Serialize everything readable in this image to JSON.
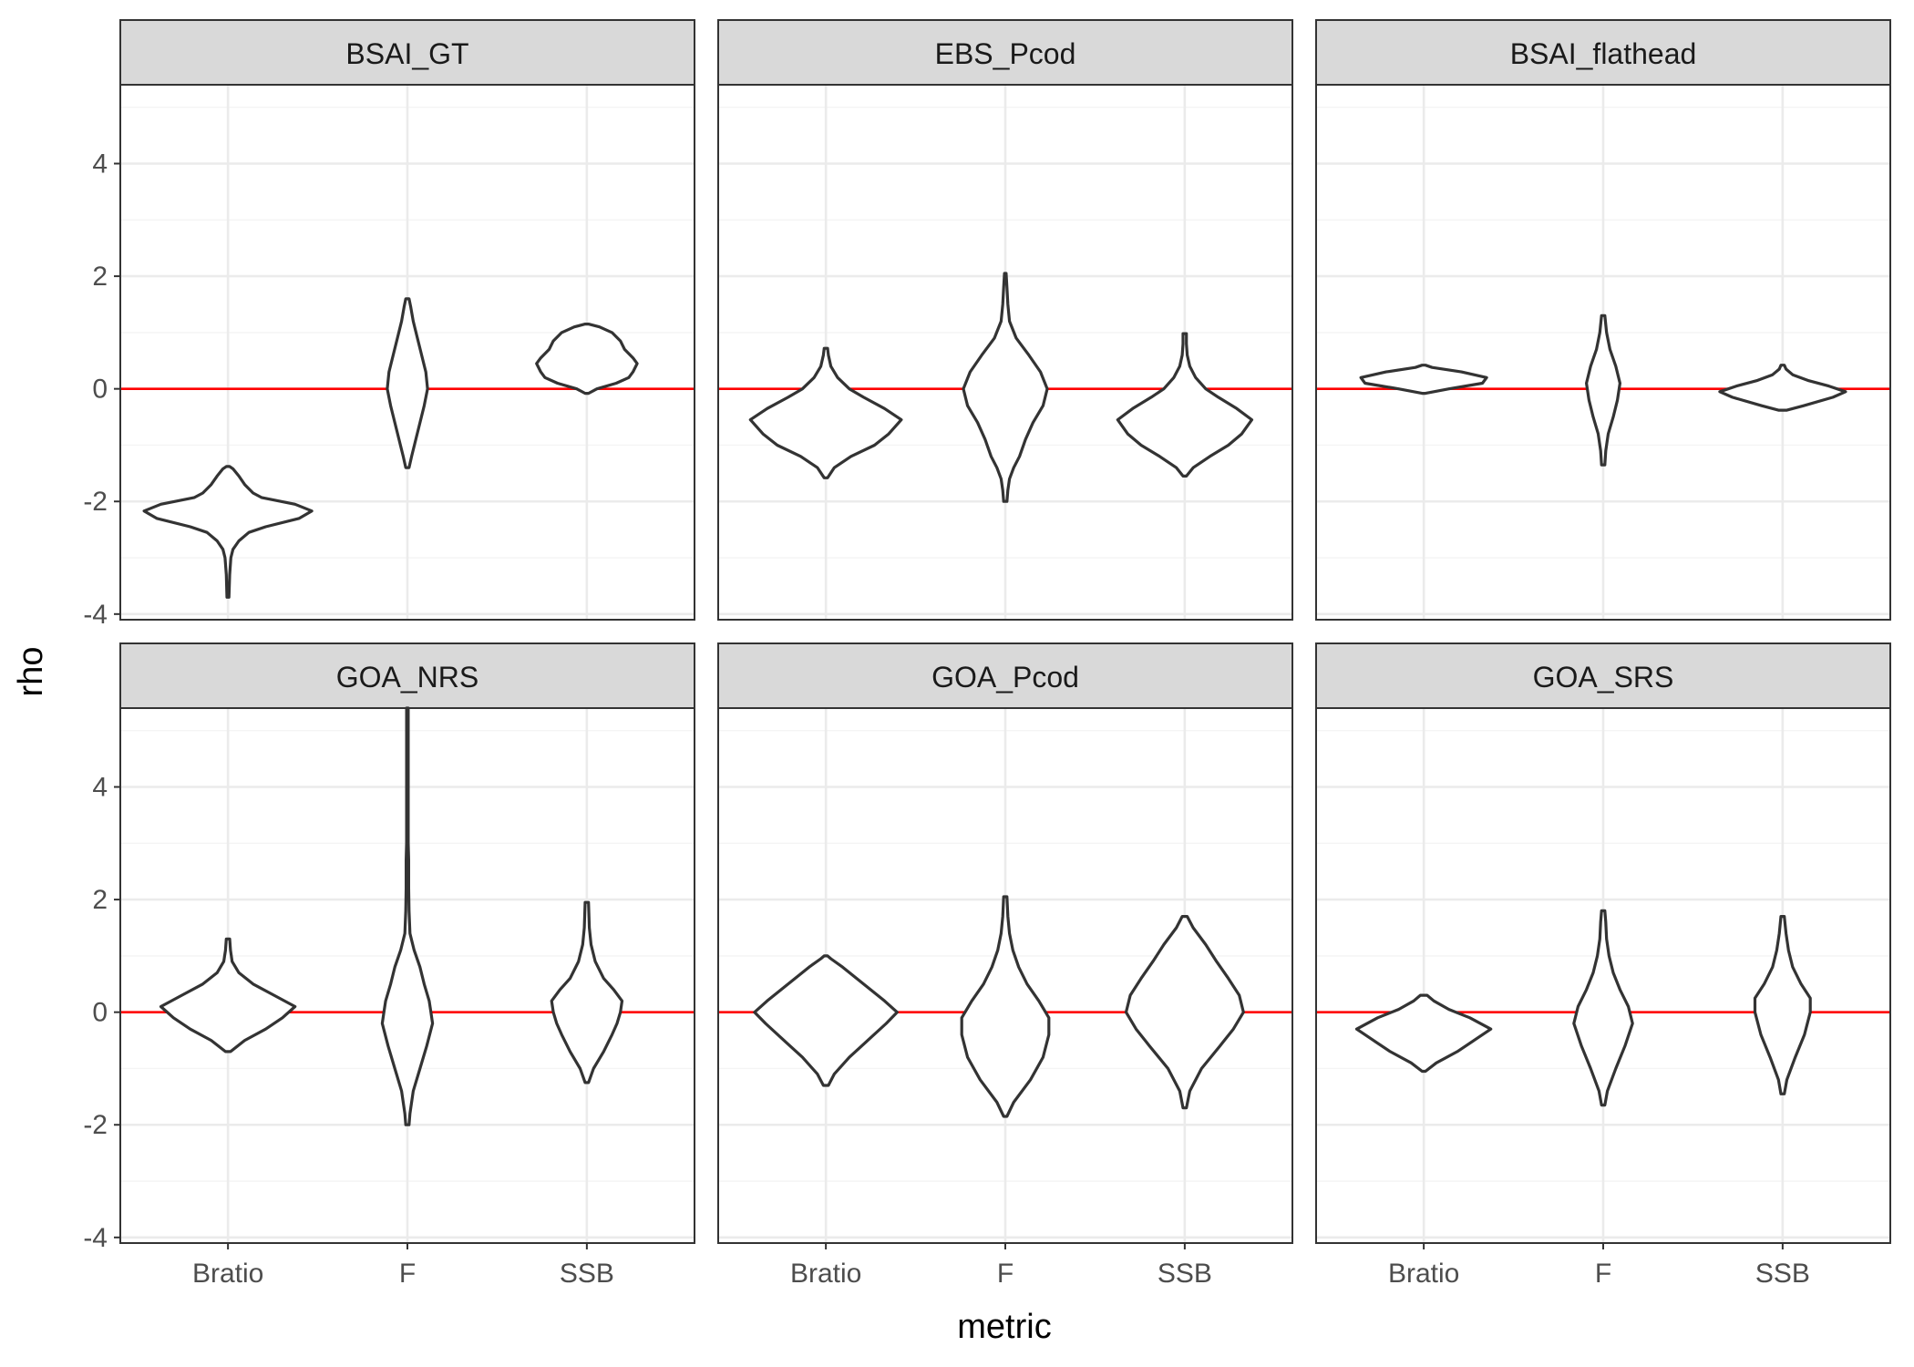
{
  "chart_data": {
    "type": "violin",
    "xlabel": "metric",
    "ylabel": "rho",
    "categories": [
      "Bratio",
      "F",
      "SSB"
    ],
    "ylim": [
      -4.1,
      5.4
    ],
    "yticks": [
      -4,
      -2,
      0,
      2,
      4
    ],
    "reference_line": {
      "y": 0,
      "color": "#ff0000"
    },
    "grid": true,
    "facets": [
      {
        "title": "BSAI_GT",
        "violins": [
          {
            "metric": "Bratio",
            "profile": [
              [
                -3.7,
                0.012
              ],
              [
                -3.3,
                0.02
              ],
              [
                -3.0,
                0.035
              ],
              [
                -2.85,
                0.06
              ],
              [
                -2.7,
                0.13
              ],
              [
                -2.55,
                0.25
              ],
              [
                -2.45,
                0.45
              ],
              [
                -2.3,
                0.85
              ],
              [
                -2.17,
                1.0
              ],
              [
                -2.05,
                0.8
              ],
              [
                -1.93,
                0.4
              ],
              [
                -1.85,
                0.3
              ],
              [
                -1.7,
                0.2
              ],
              [
                -1.55,
                0.13
              ],
              [
                -1.42,
                0.06
              ],
              [
                -1.38,
                0.02
              ]
            ]
          },
          {
            "metric": "F",
            "profile": [
              [
                -1.4,
                0.02
              ],
              [
                -1.2,
                0.05
              ],
              [
                -0.9,
                0.1
              ],
              [
                -0.6,
                0.15
              ],
              [
                -0.3,
                0.2
              ],
              [
                0.0,
                0.24
              ],
              [
                0.3,
                0.22
              ],
              [
                0.6,
                0.17
              ],
              [
                0.9,
                0.12
              ],
              [
                1.2,
                0.07
              ],
              [
                1.45,
                0.04
              ],
              [
                1.6,
                0.02
              ]
            ]
          },
          {
            "metric": "SSB",
            "profile": [
              [
                -0.08,
                0.02
              ],
              [
                0.0,
                0.12
              ],
              [
                0.1,
                0.35
              ],
              [
                0.2,
                0.5
              ],
              [
                0.3,
                0.55
              ],
              [
                0.45,
                0.6
              ],
              [
                0.55,
                0.55
              ],
              [
                0.7,
                0.45
              ],
              [
                0.85,
                0.4
              ],
              [
                1.0,
                0.3
              ],
              [
                1.1,
                0.15
              ],
              [
                1.15,
                0.02
              ]
            ]
          }
        ]
      },
      {
        "title": "EBS_Pcod",
        "violins": [
          {
            "metric": "Bratio",
            "profile": [
              [
                -1.58,
                0.02
              ],
              [
                -1.4,
                0.1
              ],
              [
                -1.2,
                0.3
              ],
              [
                -1.0,
                0.58
              ],
              [
                -0.8,
                0.75
              ],
              [
                -0.55,
                0.9
              ],
              [
                -0.35,
                0.7
              ],
              [
                -0.15,
                0.45
              ],
              [
                0.0,
                0.28
              ],
              [
                0.2,
                0.14
              ],
              [
                0.4,
                0.06
              ],
              [
                0.6,
                0.03
              ],
              [
                0.72,
                0.02
              ]
            ]
          },
          {
            "metric": "F",
            "profile": [
              [
                -2.0,
                0.02
              ],
              [
                -1.8,
                0.03
              ],
              [
                -1.6,
                0.05
              ],
              [
                -1.4,
                0.1
              ],
              [
                -1.2,
                0.17
              ],
              [
                -0.9,
                0.24
              ],
              [
                -0.6,
                0.33
              ],
              [
                -0.3,
                0.45
              ],
              [
                0.0,
                0.5
              ],
              [
                0.3,
                0.42
              ],
              [
                0.6,
                0.28
              ],
              [
                0.9,
                0.13
              ],
              [
                1.2,
                0.05
              ],
              [
                1.5,
                0.03
              ],
              [
                1.8,
                0.02
              ],
              [
                2.05,
                0.01
              ]
            ]
          },
          {
            "metric": "SSB",
            "profile": [
              [
                -1.55,
                0.02
              ],
              [
                -1.4,
                0.1
              ],
              [
                -1.2,
                0.3
              ],
              [
                -1.0,
                0.52
              ],
              [
                -0.8,
                0.68
              ],
              [
                -0.55,
                0.8
              ],
              [
                -0.35,
                0.62
              ],
              [
                -0.15,
                0.4
              ],
              [
                0.0,
                0.25
              ],
              [
                0.2,
                0.13
              ],
              [
                0.4,
                0.06
              ],
              [
                0.6,
                0.03
              ],
              [
                0.8,
                0.02
              ],
              [
                0.98,
                0.02
              ]
            ]
          }
        ]
      },
      {
        "title": "BSAI_flathead",
        "violins": [
          {
            "metric": "Bratio",
            "profile": [
              [
                -0.08,
                0.02
              ],
              [
                0.0,
                0.3
              ],
              [
                0.1,
                0.7
              ],
              [
                0.2,
                0.75
              ],
              [
                0.3,
                0.45
              ],
              [
                0.38,
                0.1
              ],
              [
                0.42,
                0.02
              ]
            ]
          },
          {
            "metric": "F",
            "profile": [
              [
                -1.35,
                0.02
              ],
              [
                -1.1,
                0.03
              ],
              [
                -0.8,
                0.06
              ],
              [
                -0.5,
                0.12
              ],
              [
                -0.2,
                0.17
              ],
              [
                0.1,
                0.2
              ],
              [
                0.4,
                0.15
              ],
              [
                0.7,
                0.08
              ],
              [
                1.0,
                0.04
              ],
              [
                1.3,
                0.02
              ]
            ]
          },
          {
            "metric": "SSB",
            "profile": [
              [
                -0.38,
                0.05
              ],
              [
                -0.3,
                0.25
              ],
              [
                -0.15,
                0.6
              ],
              [
                -0.05,
                0.75
              ],
              [
                0.05,
                0.55
              ],
              [
                0.15,
                0.3
              ],
              [
                0.25,
                0.12
              ],
              [
                0.35,
                0.04
              ],
              [
                0.42,
                0.02
              ]
            ]
          }
        ]
      },
      {
        "title": "GOA_NRS",
        "violins": [
          {
            "metric": "Bratio",
            "profile": [
              [
                -0.7,
                0.03
              ],
              [
                -0.5,
                0.2
              ],
              [
                -0.3,
                0.45
              ],
              [
                -0.1,
                0.65
              ],
              [
                0.1,
                0.8
              ],
              [
                0.3,
                0.55
              ],
              [
                0.5,
                0.3
              ],
              [
                0.7,
                0.13
              ],
              [
                0.9,
                0.05
              ],
              [
                1.1,
                0.03
              ],
              [
                1.3,
                0.02
              ]
            ]
          },
          {
            "metric": "F",
            "profile": [
              [
                -2.0,
                0.02
              ],
              [
                -1.8,
                0.03
              ],
              [
                -1.4,
                0.07
              ],
              [
                -1.0,
                0.15
              ],
              [
                -0.6,
                0.23
              ],
              [
                -0.2,
                0.3
              ],
              [
                0.0,
                0.28
              ],
              [
                0.2,
                0.26
              ],
              [
                0.5,
                0.2
              ],
              [
                0.8,
                0.15
              ],
              [
                1.1,
                0.08
              ],
              [
                1.4,
                0.03
              ],
              [
                1.8,
                0.02
              ],
              [
                2.2,
                0.015
              ],
              [
                2.7,
                0.015
              ],
              [
                3.0,
                0.01
              ],
              [
                4.0,
                0.01
              ],
              [
                5.4,
                0.01
              ]
            ]
          },
          {
            "metric": "SSB",
            "profile": [
              [
                -1.25,
                0.02
              ],
              [
                -1.0,
                0.08
              ],
              [
                -0.7,
                0.2
              ],
              [
                -0.4,
                0.3
              ],
              [
                -0.2,
                0.36
              ],
              [
                0.0,
                0.4
              ],
              [
                0.2,
                0.42
              ],
              [
                0.4,
                0.32
              ],
              [
                0.6,
                0.2
              ],
              [
                0.9,
                0.1
              ],
              [
                1.2,
                0.05
              ],
              [
                1.5,
                0.03
              ],
              [
                1.95,
                0.02
              ]
            ]
          }
        ]
      },
      {
        "title": "GOA_Pcod",
        "violins": [
          {
            "metric": "Bratio",
            "profile": [
              [
                -1.3,
                0.03
              ],
              [
                -1.1,
                0.1
              ],
              [
                -0.8,
                0.28
              ],
              [
                -0.5,
                0.5
              ],
              [
                -0.2,
                0.72
              ],
              [
                0.0,
                0.85
              ],
              [
                0.2,
                0.7
              ],
              [
                0.5,
                0.45
              ],
              [
                0.8,
                0.2
              ],
              [
                0.95,
                0.06
              ],
              [
                1.0,
                0.02
              ]
            ]
          },
          {
            "metric": "F",
            "profile": [
              [
                -1.85,
                0.02
              ],
              [
                -1.6,
                0.1
              ],
              [
                -1.2,
                0.3
              ],
              [
                -0.8,
                0.45
              ],
              [
                -0.4,
                0.52
              ],
              [
                -0.1,
                0.52
              ],
              [
                0.2,
                0.4
              ],
              [
                0.5,
                0.26
              ],
              [
                0.8,
                0.16
              ],
              [
                1.1,
                0.09
              ],
              [
                1.4,
                0.05
              ],
              [
                1.7,
                0.03
              ],
              [
                2.05,
                0.02
              ]
            ]
          },
          {
            "metric": "SSB",
            "profile": [
              [
                -1.7,
                0.02
              ],
              [
                -1.4,
                0.06
              ],
              [
                -1.0,
                0.2
              ],
              [
                -0.6,
                0.42
              ],
              [
                -0.3,
                0.58
              ],
              [
                0.0,
                0.7
              ],
              [
                0.3,
                0.65
              ],
              [
                0.6,
                0.52
              ],
              [
                0.9,
                0.38
              ],
              [
                1.2,
                0.25
              ],
              [
                1.5,
                0.1
              ],
              [
                1.7,
                0.03
              ]
            ]
          }
        ]
      },
      {
        "title": "GOA_SRS",
        "violins": [
          {
            "metric": "Bratio",
            "profile": [
              [
                -1.05,
                0.02
              ],
              [
                -0.9,
                0.15
              ],
              [
                -0.7,
                0.4
              ],
              [
                -0.5,
                0.6
              ],
              [
                -0.3,
                0.8
              ],
              [
                -0.1,
                0.55
              ],
              [
                0.05,
                0.3
              ],
              [
                0.2,
                0.12
              ],
              [
                0.3,
                0.04
              ]
            ]
          },
          {
            "metric": "F",
            "profile": [
              [
                -1.65,
                0.02
              ],
              [
                -1.4,
                0.05
              ],
              [
                -1.0,
                0.15
              ],
              [
                -0.6,
                0.26
              ],
              [
                -0.2,
                0.35
              ],
              [
                0.1,
                0.3
              ],
              [
                0.4,
                0.2
              ],
              [
                0.7,
                0.12
              ],
              [
                1.0,
                0.07
              ],
              [
                1.3,
                0.04
              ],
              [
                1.6,
                0.03
              ],
              [
                1.8,
                0.02
              ]
            ]
          },
          {
            "metric": "SSB",
            "profile": [
              [
                -1.45,
                0.02
              ],
              [
                -1.2,
                0.05
              ],
              [
                -0.8,
                0.15
              ],
              [
                -0.4,
                0.26
              ],
              [
                0.0,
                0.33
              ],
              [
                0.25,
                0.33
              ],
              [
                0.5,
                0.22
              ],
              [
                0.8,
                0.12
              ],
              [
                1.1,
                0.07
              ],
              [
                1.4,
                0.04
              ],
              [
                1.7,
                0.02
              ]
            ]
          }
        ]
      }
    ]
  }
}
